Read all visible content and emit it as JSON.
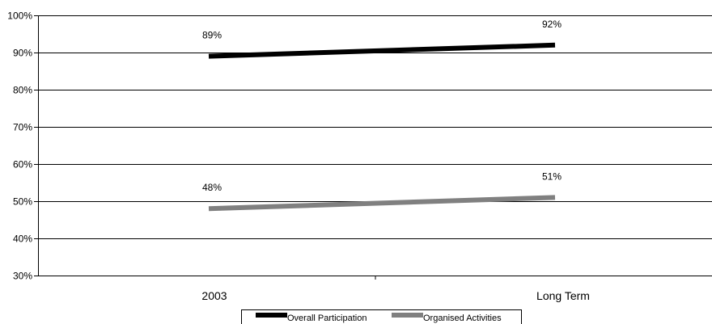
{
  "chart_data": {
    "type": "line",
    "categories": [
      "2003",
      "Long Term"
    ],
    "series": [
      {
        "name": "Overall Participation",
        "values": [
          89,
          92
        ],
        "labels": [
          "89%",
          "92%"
        ],
        "color": "#000000"
      },
      {
        "name": "Organised Activities",
        "values": [
          48,
          51
        ],
        "labels": [
          "48%",
          "51%"
        ],
        "color": "#808080"
      }
    ],
    "ylim": [
      30,
      100
    ],
    "yticks": [
      30,
      40,
      50,
      60,
      70,
      80,
      90,
      100
    ],
    "ytick_labels": [
      "30%",
      "40%",
      "50%",
      "60%",
      "70%",
      "80%",
      "90%",
      "100%"
    ],
    "grid": true,
    "legend_position": "bottom",
    "title": "",
    "xlabel": "",
    "ylabel": ""
  }
}
